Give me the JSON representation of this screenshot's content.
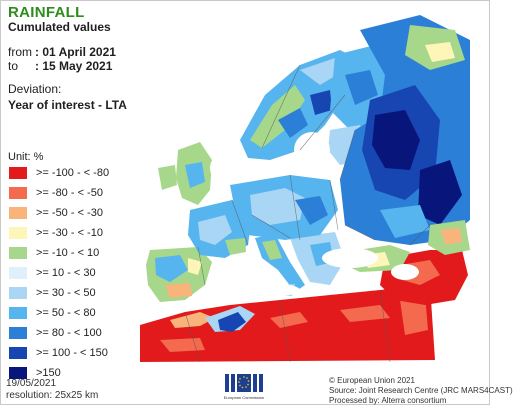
{
  "header": {
    "title": "RAINFALL",
    "subtitle": "Cumulated values",
    "from_label": "from",
    "from_value": ": 01 April 2021",
    "to_label": "to",
    "to_value": ": 15 May 2021",
    "deviation_label": "Deviation:",
    "deviation_value": "Year of interest - LTA"
  },
  "legend": {
    "unit": "Unit: %",
    "classes": [
      {
        "label": ">= -100 - < -80",
        "color": "#e31a1c"
      },
      {
        "label": ">= -80 - < -50",
        "color": "#f46a4e"
      },
      {
        "label": ">= -50 - < -30",
        "color": "#f9b47b"
      },
      {
        "label": ">= -30 - < -10",
        "color": "#fef6b8"
      },
      {
        "label": ">= -10 - < 10",
        "color": "#a6d78a"
      },
      {
        "label": ">= 10 - < 30",
        "color": "#dff0fb"
      },
      {
        "label": ">= 30 - < 50",
        "color": "#a9d6f5"
      },
      {
        "label": ">= 50 - < 80",
        "color": "#56b4ee"
      },
      {
        "label": ">= 80 - < 100",
        "color": "#2c7fd6"
      },
      {
        "label": ">= 100 - < 150",
        "color": "#1746b3"
      },
      {
        "label": ">150",
        "color": "#08157a"
      }
    ]
  },
  "footer": {
    "date": "19/05/2021",
    "resolution": "resolution: 25x25 km",
    "copyright": "© European Union 2021",
    "source": "Source: Joint Research Centre (JRC MARS4CAST)",
    "processed": "Processed by: Alterra consortium",
    "logo_text": "European Commission"
  },
  "colors": {
    "sea": "#ffffff",
    "title": "#2e8b1e",
    "border": "#555555",
    "no_data": "#ececec"
  }
}
